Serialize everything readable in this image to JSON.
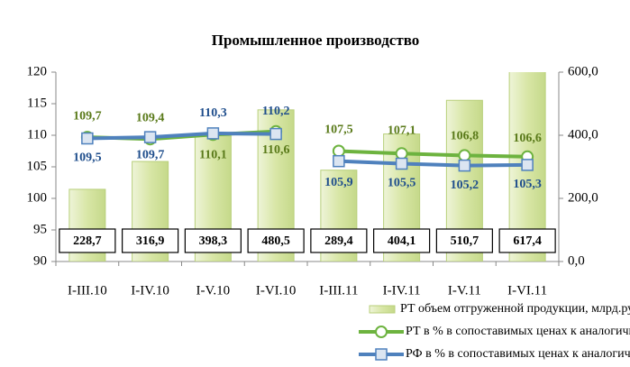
{
  "chart_data": {
    "type": "bar-line",
    "title": "Промышленное производство",
    "categories": [
      "I-III.10",
      "I-IV.10",
      "I-V.10",
      "I-VI.10",
      "I-III.11",
      "I-IV.11",
      "I-V.11",
      "I-VI.11"
    ],
    "ylim": [
      90,
      120
    ],
    "yticks": [
      90,
      95,
      100,
      105,
      110,
      115,
      120
    ],
    "y2lim": [
      0,
      600
    ],
    "y2ticks": [
      {
        "value": 0,
        "label": "0,0"
      },
      {
        "value": 200,
        "label": "200,0"
      },
      {
        "value": 400,
        "label": "400,0"
      },
      {
        "value": 600,
        "label": "600,0"
      }
    ],
    "series": [
      {
        "name": "РТ объем отгруженной продукции, млрд.рублей",
        "type": "bar",
        "axis": "y2",
        "color": "#d8e6a6",
        "values": [
          228.7,
          316.9,
          398.3,
          480.5,
          289.4,
          404.1,
          510.7,
          617.4
        ],
        "value_labels": [
          "228,7",
          "316,9",
          "398,3",
          "480,5",
          "289,4",
          "404,1",
          "510,7",
          "617,4"
        ]
      },
      {
        "name": "РТ в % в сопоставимых ценах к аналогичному периоду предыдущего года",
        "type": "line",
        "color": "#6db33f",
        "values": [
          109.7,
          109.4,
          110.1,
          110.6,
          107.5,
          107.1,
          106.8,
          106.6
        ],
        "value_labels": [
          "109,7",
          "109,4",
          "110,1",
          "110,6",
          "107,5",
          "107,1",
          "106,8",
          "106,6"
        ]
      },
      {
        "name": "РФ в % в сопоставимых ценах к аналогичному периоду предыдущего года",
        "type": "line",
        "color": "#4f81bd",
        "values": [
          109.5,
          109.7,
          110.3,
          110.2,
          105.9,
          105.5,
          105.2,
          105.3
        ],
        "value_labels": [
          "109,5",
          "109,7",
          "110,3",
          "110,2",
          "105,9",
          "105,5",
          "105,2",
          "105,3"
        ]
      }
    ]
  }
}
